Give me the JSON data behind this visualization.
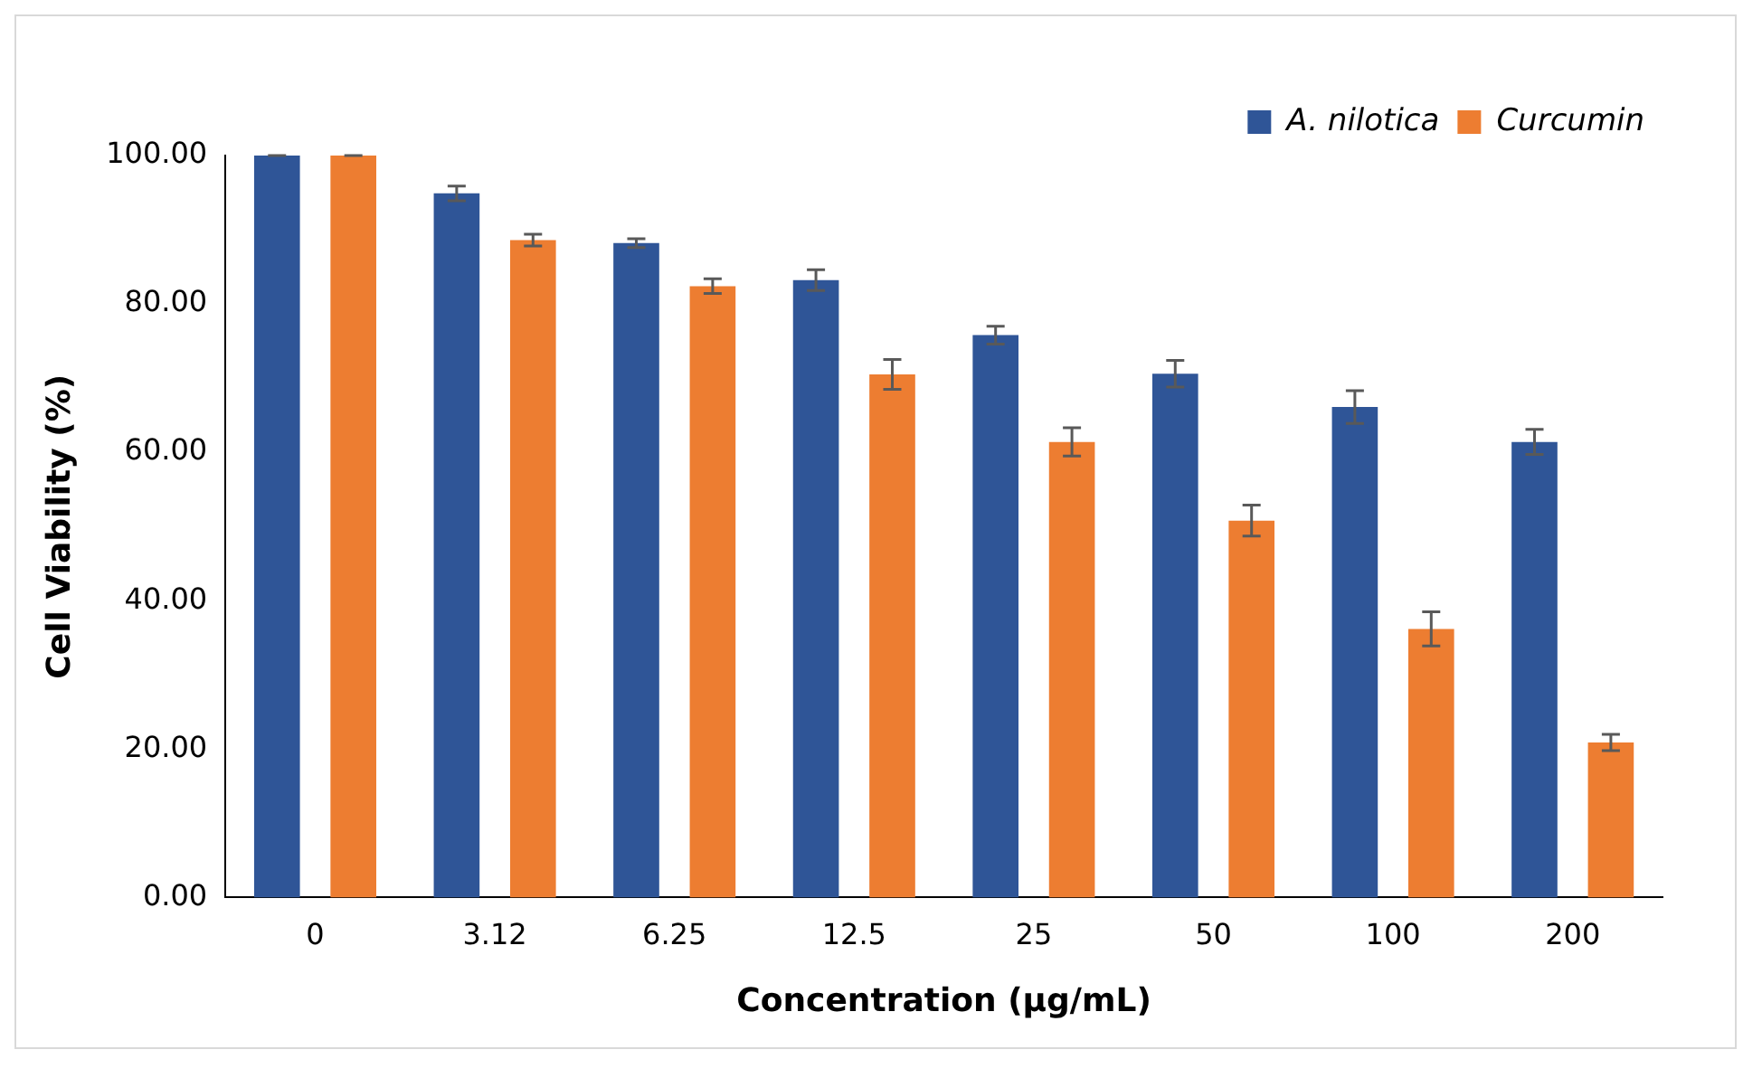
{
  "chart_data": {
    "type": "bar",
    "xlabel": "Concentration (μg/mL)",
    "ylabel": "Cell Viability (%)",
    "categories": [
      "0",
      "3.12",
      "6.25",
      "12.5",
      "25",
      "50",
      "100",
      "200"
    ],
    "series": [
      {
        "name": "A. nilotica",
        "color": "#2f5597",
        "values": [
          100,
          94.9,
          88.2,
          83.2,
          75.8,
          70.6,
          66.1,
          61.4
        ],
        "errors": [
          0,
          1.0,
          0.6,
          1.4,
          1.2,
          1.8,
          2.2,
          1.7
        ]
      },
      {
        "name": "Curcumin",
        "color": "#ed7d31",
        "values": [
          100,
          88.6,
          82.4,
          70.5,
          61.4,
          50.8,
          36.2,
          20.9
        ],
        "errors": [
          0,
          0.8,
          1.0,
          2.0,
          1.9,
          2.1,
          2.3,
          1.1
        ]
      }
    ],
    "ylim": [
      0,
      100
    ],
    "yticks": [
      {
        "value": 0,
        "label": "0.00"
      },
      {
        "value": 20,
        "label": "20.00"
      },
      {
        "value": 40,
        "label": "40.00"
      },
      {
        "value": 60,
        "label": "60.00"
      },
      {
        "value": 80,
        "label": "80.00"
      },
      {
        "value": 100,
        "label": "100.00"
      }
    ],
    "grid": false,
    "legend": "top right"
  }
}
